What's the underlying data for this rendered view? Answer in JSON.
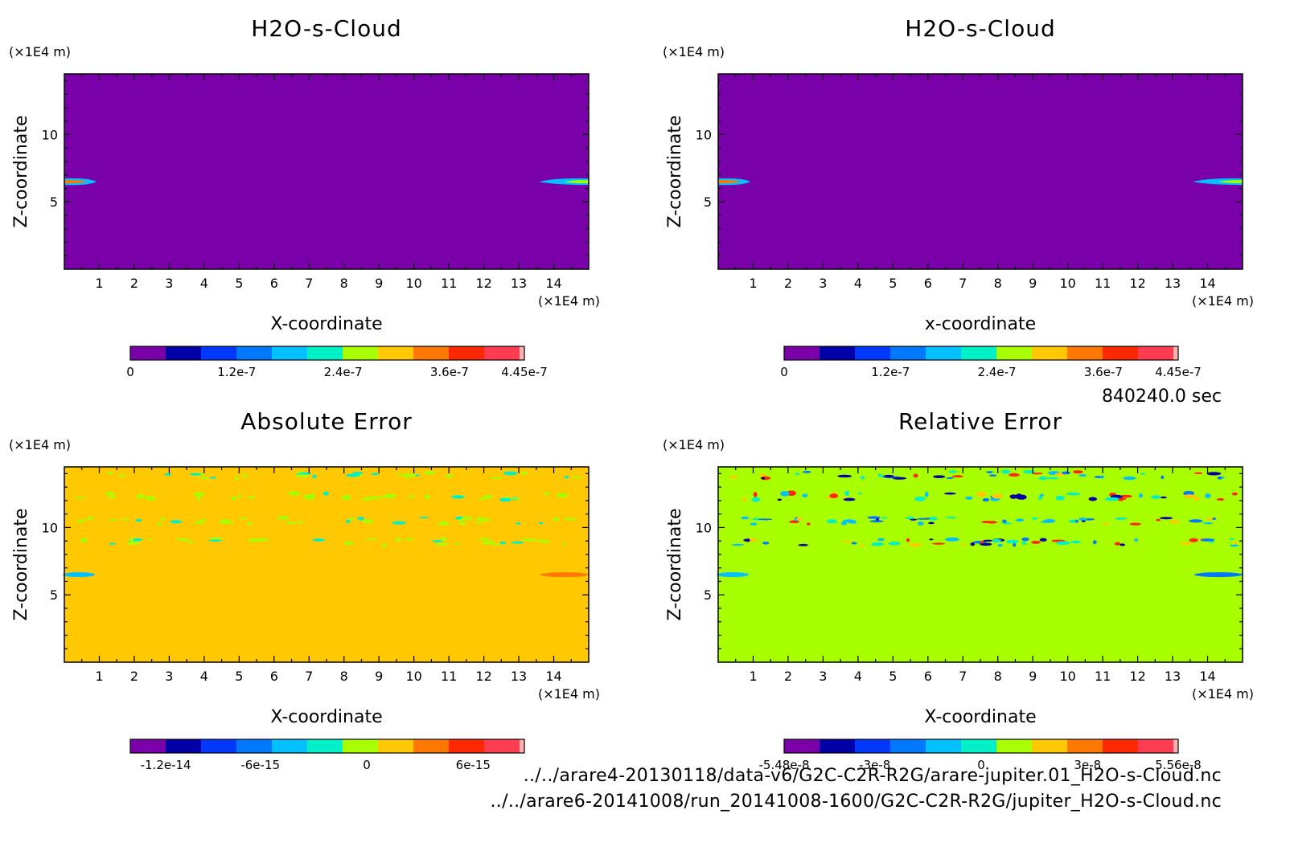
{
  "colors": {
    "contour_levels": [
      "#7a00aa",
      "#0000a8",
      "#0038ff",
      "#0078ff",
      "#00c0ff",
      "#00f0c8",
      "#a8ff00",
      "#ffc800",
      "#ff7800",
      "#ff2800",
      "#ff3c50",
      "#ffb0b0"
    ],
    "field_background": "#7a00aa",
    "abs_background": "#ffc800",
    "rel_background": "#a8ff00"
  },
  "timestamp": "840240.0 sec",
  "footer": {
    "file1": "../../arare4-20130118/data-v6/G2C-C2R-R2G/arare-jupiter.01_H2O-s-Cloud.nc",
    "file2": "../../arare6-20141008/run_20141008-1600/G2C-C2R-R2G/jupiter_H2O-s-Cloud.nc"
  },
  "chart_data": [
    {
      "type": "heatmap",
      "title": "H2O-s-Cloud",
      "xlabel": "X-coordinate",
      "ylabel": "Z-coordinate",
      "x_unit": "(×1E4 m)",
      "y_unit": "(×1E4 m)",
      "xlim": [
        0,
        15
      ],
      "ylim": [
        0,
        14.5
      ],
      "x_ticks": [
        "1",
        "2",
        "3",
        "4",
        "5",
        "6",
        "7",
        "8",
        "9",
        "10",
        "11",
        "12",
        "13",
        "14"
      ],
      "y_ticks": [
        "5",
        "10"
      ],
      "colorbar_ticks": [
        "0",
        "1.2e-7",
        "2.4e-7",
        "3.6e-7",
        "4.45e-7"
      ],
      "colorbar_tick_pos": [
        0,
        0.27,
        0.54,
        0.81,
        1.0
      ]
    },
    {
      "type": "heatmap",
      "title": "H2O-s-Cloud",
      "xlabel": "x-coordinate",
      "ylabel": "Z-coordinate",
      "x_unit": "(×1E4 m)",
      "y_unit": "(×1E4 m)",
      "xlim": [
        0,
        15
      ],
      "ylim": [
        0,
        14.5
      ],
      "x_ticks": [
        "1",
        "2",
        "3",
        "4",
        "5",
        "6",
        "7",
        "8",
        "9",
        "10",
        "11",
        "12",
        "13",
        "14"
      ],
      "y_ticks": [
        "5",
        "10"
      ],
      "colorbar_ticks": [
        "0",
        "1.2e-7",
        "2.4e-7",
        "3.6e-7",
        "4.45e-7"
      ],
      "colorbar_tick_pos": [
        0,
        0.27,
        0.54,
        0.81,
        1.0
      ]
    },
    {
      "type": "heatmap",
      "title": "Absolute Error",
      "xlabel": "X-coordinate",
      "ylabel": "Z-coordinate",
      "x_unit": "(×1E4 m)",
      "y_unit": "(×1E4 m)",
      "xlim": [
        0,
        15
      ],
      "ylim": [
        0,
        14.5
      ],
      "x_ticks": [
        "1",
        "2",
        "3",
        "4",
        "5",
        "6",
        "7",
        "8",
        "9",
        "10",
        "11",
        "12",
        "13",
        "14"
      ],
      "y_ticks": [
        "5",
        "10"
      ],
      "colorbar_ticks": [
        "-1.2e-14",
        "-6e-15",
        "0",
        "6e-15"
      ],
      "colorbar_tick_pos": [
        0.09,
        0.33,
        0.6,
        0.87
      ]
    },
    {
      "type": "heatmap",
      "title": "Relative Error",
      "xlabel": "X-coordinate",
      "ylabel": "Z-coordinate",
      "x_unit": "(×1E4 m)",
      "y_unit": "(×1E4 m)",
      "xlim": [
        0,
        15
      ],
      "ylim": [
        0,
        14.5
      ],
      "x_ticks": [
        "1",
        "2",
        "3",
        "4",
        "5",
        "6",
        "7",
        "8",
        "9",
        "10",
        "11",
        "12",
        "13",
        "14"
      ],
      "y_ticks": [
        "5",
        "10"
      ],
      "colorbar_ticks": [
        "-5.48e-8",
        "-3e-8",
        "0",
        "3e-8",
        "5.56e-8"
      ],
      "colorbar_tick_pos": [
        0,
        0.23,
        0.5,
        0.77,
        1.0
      ]
    }
  ]
}
